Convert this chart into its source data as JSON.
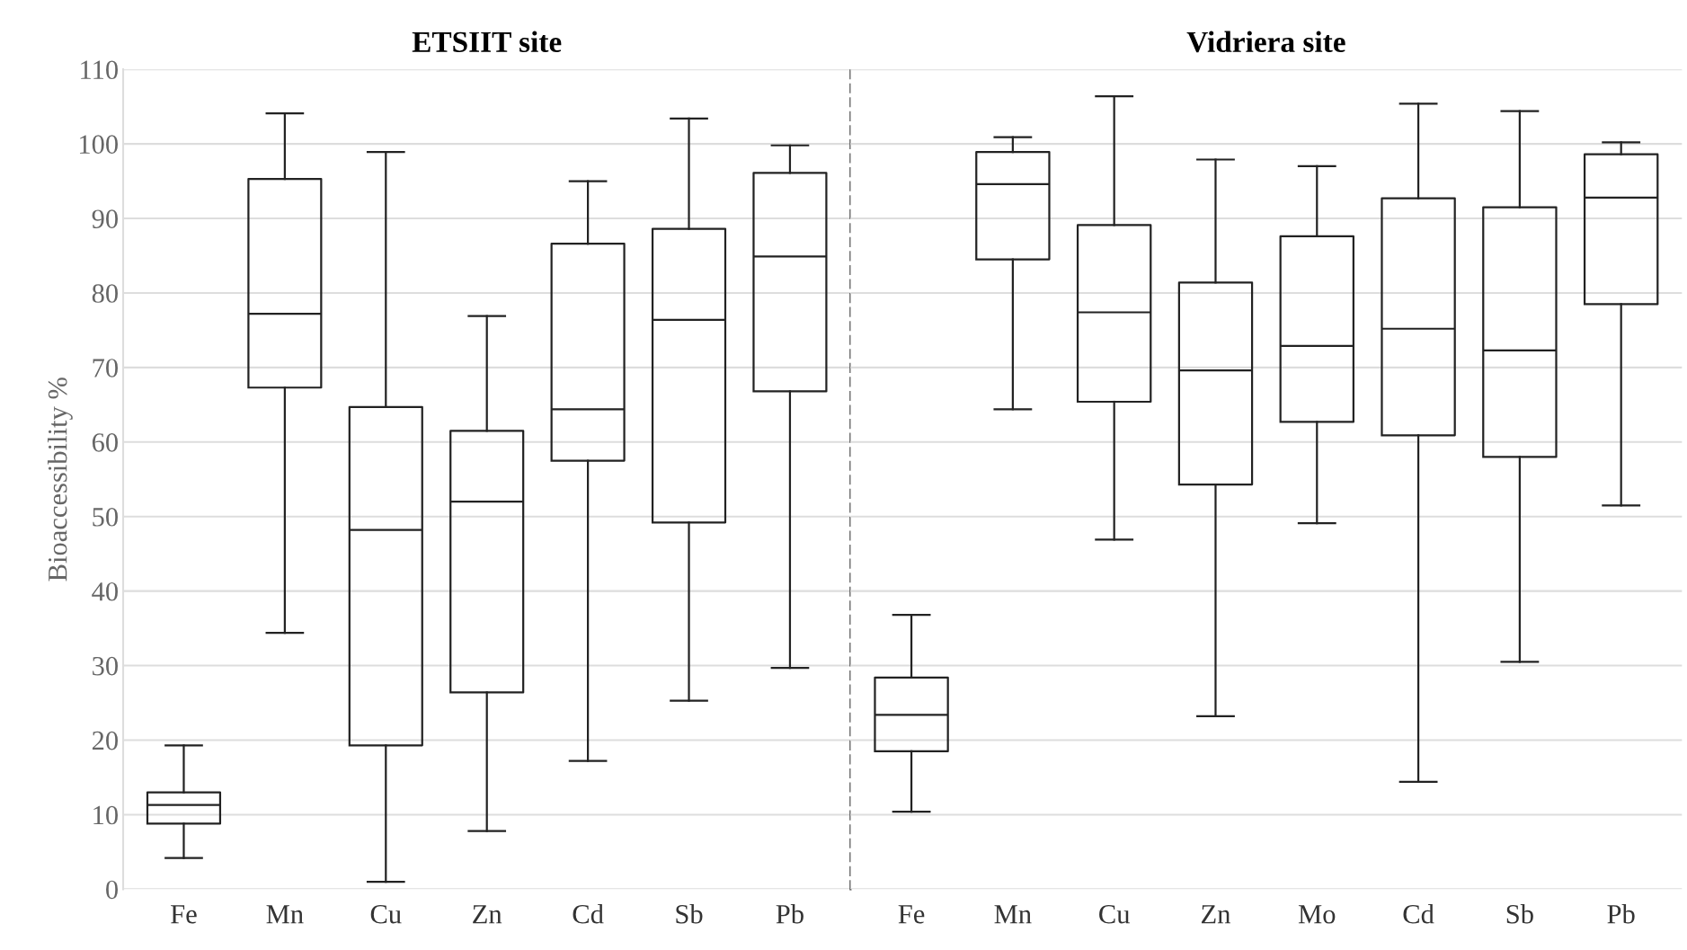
{
  "chart_data": [
    {
      "type": "box",
      "title": "ETSIIT site",
      "ylabel": "Bioaccessibility %",
      "categories": [
        "Fe",
        "Mn",
        "Cu",
        "Zn",
        "Cd",
        "Sb",
        "Pb"
      ],
      "ylim": [
        0,
        110
      ],
      "yticks": [
        0,
        10,
        20,
        30,
        40,
        50,
        60,
        70,
        80,
        90,
        100,
        110
      ],
      "grid": "y",
      "boxes": [
        {
          "low": 4.2,
          "q1": 8.8,
          "median": 11.3,
          "q3": 13.0,
          "high": 19.3
        },
        {
          "low": 34.4,
          "q1": 67.3,
          "median": 77.2,
          "q3": 95.3,
          "high": 104.1
        },
        {
          "low": 1.0,
          "q1": 19.3,
          "median": 48.2,
          "q3": 64.7,
          "high": 98.9
        },
        {
          "low": 7.8,
          "q1": 26.4,
          "median": 52.0,
          "q3": 61.5,
          "high": 76.9
        },
        {
          "low": 17.2,
          "q1": 57.5,
          "median": 64.4,
          "q3": 86.6,
          "high": 95.0
        },
        {
          "low": 25.3,
          "q1": 49.2,
          "median": 76.4,
          "q3": 88.6,
          "high": 103.4
        },
        {
          "low": 29.7,
          "q1": 66.8,
          "median": 84.9,
          "q3": 96.1,
          "high": 99.8
        }
      ]
    },
    {
      "type": "box",
      "title": "Vidriera site",
      "categories": [
        "Fe",
        "Mn",
        "Cu",
        "Zn",
        "Mo",
        "Cd",
        "Sb",
        "Pb"
      ],
      "ylim": [
        0,
        110
      ],
      "yticks": [
        0,
        10,
        20,
        30,
        40,
        50,
        60,
        70,
        80,
        90,
        100,
        110
      ],
      "grid": "y",
      "tick_labels": "x",
      "boxes": [
        {
          "low": 10.4,
          "q1": 18.5,
          "median": 23.4,
          "q3": 28.4,
          "high": 36.8
        },
        {
          "low": 64.4,
          "q1": 84.5,
          "median": 94.6,
          "q3": 98.9,
          "high": 100.9
        },
        {
          "low": 46.9,
          "q1": 65.4,
          "median": 77.4,
          "q3": 89.1,
          "high": 106.4
        },
        {
          "low": 23.2,
          "q1": 54.3,
          "median": 69.6,
          "q3": 81.4,
          "high": 97.9
        },
        {
          "low": 49.1,
          "q1": 62.7,
          "median": 72.9,
          "q3": 87.6,
          "high": 97.0
        },
        {
          "low": 14.4,
          "q1": 60.9,
          "median": 75.2,
          "q3": 92.7,
          "high": 105.4
        },
        {
          "low": 30.5,
          "q1": 58.0,
          "median": 72.3,
          "q3": 91.5,
          "high": 104.4
        },
        {
          "low": 51.5,
          "q1": 78.5,
          "median": 92.8,
          "q3": 98.6,
          "high": 100.2
        }
      ]
    }
  ]
}
